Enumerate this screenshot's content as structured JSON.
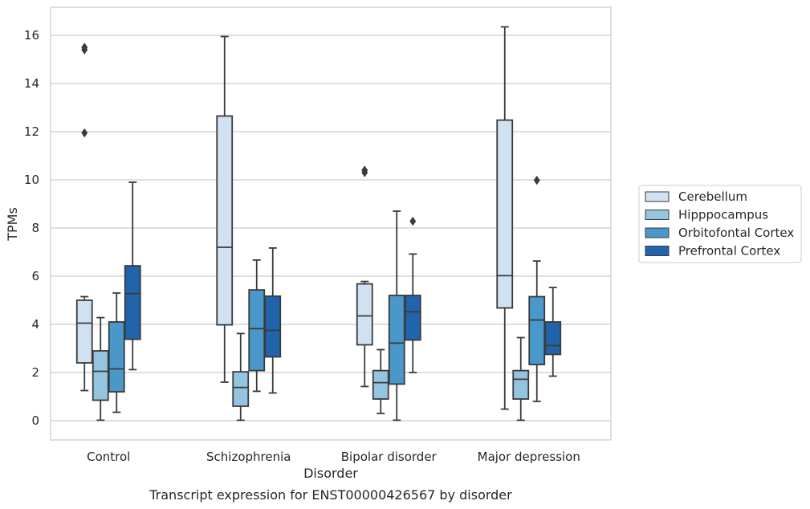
{
  "chart_data": {
    "type": "box",
    "title": "",
    "caption": "Transcript expression for ENST00000426567 by disorder",
    "xlabel": "Disorder",
    "ylabel": "TPMs",
    "ylim": [
      -0.7,
      17.2
    ],
    "yticks": [
      0,
      2,
      4,
      6,
      8,
      10,
      12,
      14,
      16
    ],
    "grid": "horizontal",
    "legend_position": "right",
    "categories": [
      "Control",
      "Schizophrenia",
      "Bipolar disorder",
      "Major depression"
    ],
    "series": [
      {
        "name": "Cerebellum",
        "color": "#d0e1f2",
        "boxes": [
          {
            "whisker_low": 1.25,
            "q1": 2.4,
            "median": 4.05,
            "q3": 5.0,
            "whisker_high": 5.15,
            "outliers": [
              15.4,
              15.5,
              11.95
            ]
          },
          {
            "whisker_low": 1.6,
            "q1": 3.98,
            "median": 7.2,
            "q3": 12.65,
            "whisker_high": 15.95,
            "outliers": []
          },
          {
            "whisker_low": 1.42,
            "q1": 3.15,
            "median": 4.35,
            "q3": 5.68,
            "whisker_high": 5.78,
            "outliers": [
              10.3,
              10.4
            ]
          },
          {
            "whisker_low": 0.48,
            "q1": 4.68,
            "median": 6.02,
            "q3": 12.48,
            "whisker_high": 16.35,
            "outliers": []
          }
        ]
      },
      {
        "name": "Hipppocampus",
        "color": "#94c4df",
        "boxes": [
          {
            "whisker_low": 0.02,
            "q1": 0.85,
            "median": 2.05,
            "q3": 2.9,
            "whisker_high": 4.28,
            "outliers": []
          },
          {
            "whisker_low": 0.02,
            "q1": 0.6,
            "median": 1.38,
            "q3": 2.03,
            "whisker_high": 3.62,
            "outliers": []
          },
          {
            "whisker_low": 0.3,
            "q1": 0.9,
            "median": 1.58,
            "q3": 2.08,
            "whisker_high": 2.95,
            "outliers": []
          },
          {
            "whisker_low": 0.02,
            "q1": 0.9,
            "median": 1.72,
            "q3": 2.08,
            "whisker_high": 3.45,
            "outliers": []
          }
        ]
      },
      {
        "name": "Orbitofontal Cortex",
        "color": "#4a98c9",
        "boxes": [
          {
            "whisker_low": 0.35,
            "q1": 1.2,
            "median": 2.15,
            "q3": 4.1,
            "whisker_high": 5.3,
            "outliers": []
          },
          {
            "whisker_low": 1.22,
            "q1": 2.08,
            "median": 3.82,
            "q3": 5.43,
            "whisker_high": 6.67,
            "outliers": []
          },
          {
            "whisker_low": 0.02,
            "q1": 1.52,
            "median": 3.22,
            "q3": 5.2,
            "whisker_high": 8.7,
            "outliers": []
          },
          {
            "whisker_low": 0.8,
            "q1": 2.33,
            "median": 4.18,
            "q3": 5.15,
            "whisker_high": 6.63,
            "outliers": [
              9.98
            ]
          }
        ]
      },
      {
        "name": "Prefrontal Cortex",
        "color": "#2164ab",
        "boxes": [
          {
            "whisker_low": 2.12,
            "q1": 3.38,
            "median": 5.28,
            "q3": 6.43,
            "whisker_high": 9.9,
            "outliers": []
          },
          {
            "whisker_low": 1.15,
            "q1": 2.65,
            "median": 3.75,
            "q3": 5.17,
            "whisker_high": 7.17,
            "outliers": []
          },
          {
            "whisker_low": 2.0,
            "q1": 3.35,
            "median": 4.52,
            "q3": 5.2,
            "whisker_high": 6.92,
            "outliers": [
              8.28
            ]
          },
          {
            "whisker_low": 1.85,
            "q1": 2.75,
            "median": 3.12,
            "q3": 4.1,
            "whisker_high": 5.53,
            "outliers": []
          }
        ]
      }
    ]
  }
}
